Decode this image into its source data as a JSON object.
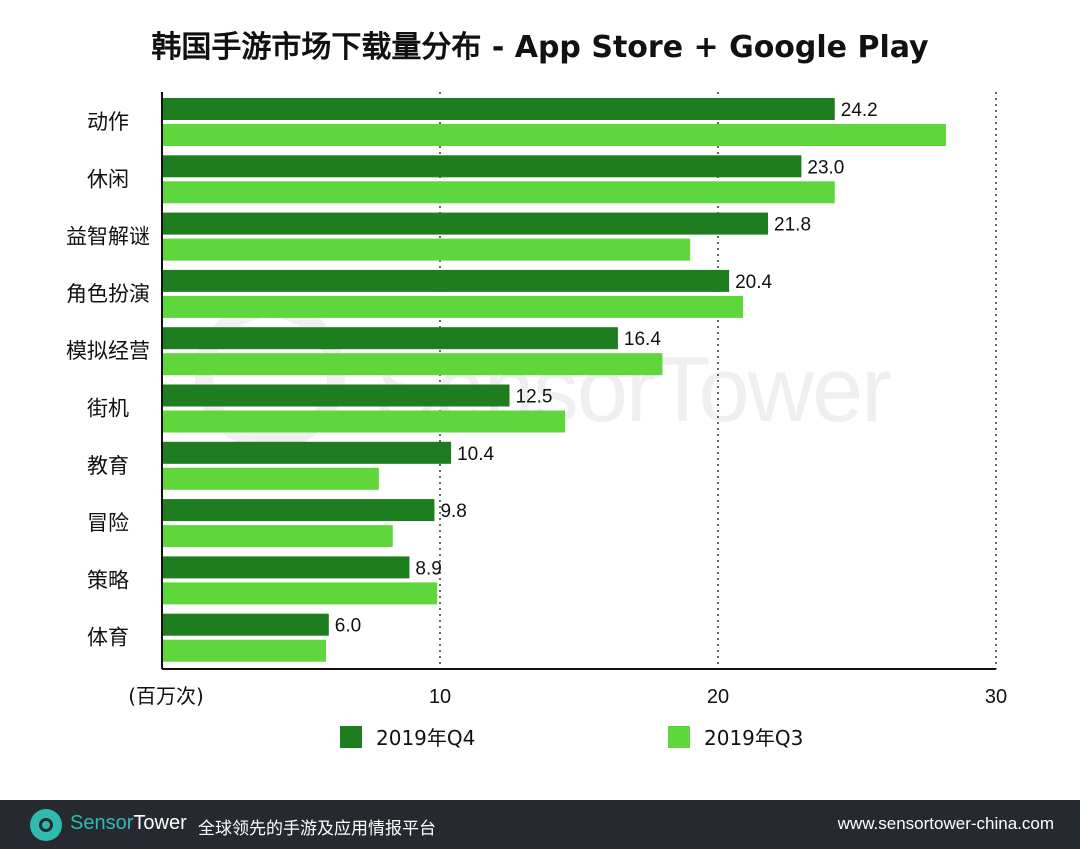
{
  "chart_data": {
    "type": "bar",
    "orientation": "horizontal",
    "title": "韩国手游市场下载量分布 - App Store + Google Play",
    "xlabel": "(百万次)",
    "xlim": [
      0,
      30
    ],
    "xticks": [
      10,
      20,
      30
    ],
    "grid": "dotted vertical",
    "categories": [
      "动作",
      "休闲",
      "益智解谜",
      "角色扮演",
      "模拟经营",
      "街机",
      "教育",
      "冒险",
      "策略",
      "体育"
    ],
    "series": [
      {
        "name": "2019年Q4",
        "color": "#1e7d1e",
        "values": [
          24.2,
          23.0,
          21.8,
          20.4,
          16.4,
          12.5,
          10.4,
          9.8,
          8.9,
          6.0
        ],
        "labels": [
          "24.2",
          "23.0",
          "21.8",
          "20.4",
          "16.4",
          "12.5",
          "10.4",
          "9.8",
          "8.9",
          "6.0"
        ]
      },
      {
        "name": "2019年Q3",
        "color": "#5fd63c",
        "values": [
          28.2,
          24.2,
          19.0,
          20.9,
          18.0,
          14.5,
          7.8,
          8.3,
          9.9,
          5.9
        ]
      }
    ],
    "legend_position": "bottom"
  },
  "watermark": "SensorTower",
  "footer": {
    "brand_part1": "Sensor",
    "brand_part2": "Tower",
    "tagline": "全球领先的手游及应用情报平台",
    "url": "www.sensortower-china.com",
    "icon": "sensortower-logo-icon"
  }
}
